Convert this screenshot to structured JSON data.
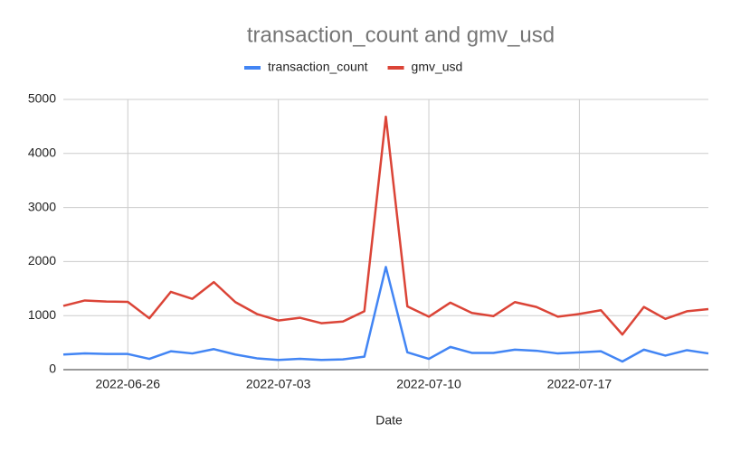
{
  "chart_data": {
    "type": "line",
    "title": "transaction_count and gmv_usd",
    "xlabel": "Date",
    "x": [
      "2022-06-23",
      "2022-06-24",
      "2022-06-25",
      "2022-06-26",
      "2022-06-27",
      "2022-06-28",
      "2022-06-29",
      "2022-06-30",
      "2022-07-01",
      "2022-07-02",
      "2022-07-03",
      "2022-07-04",
      "2022-07-05",
      "2022-07-06",
      "2022-07-07",
      "2022-07-08",
      "2022-07-09",
      "2022-07-10",
      "2022-07-11",
      "2022-07-12",
      "2022-07-13",
      "2022-07-14",
      "2022-07-15",
      "2022-07-16",
      "2022-07-17",
      "2022-07-18",
      "2022-07-19",
      "2022-07-20",
      "2022-07-21",
      "2022-07-22",
      "2022-07-23"
    ],
    "xticks": [
      "2022-06-26",
      "2022-07-03",
      "2022-07-10",
      "2022-07-17"
    ],
    "series": [
      {
        "name": "transaction_count",
        "color": "#4285f4",
        "values": [
          280,
          300,
          290,
          290,
          200,
          340,
          300,
          380,
          280,
          210,
          180,
          200,
          180,
          190,
          240,
          1900,
          320,
          200,
          420,
          310,
          310,
          370,
          350,
          300,
          320,
          340,
          150,
          370,
          260,
          360,
          300
        ]
      },
      {
        "name": "gmv_usd",
        "color": "#db4437",
        "values": [
          1180,
          1280,
          1260,
          1255,
          950,
          1440,
          1310,
          1620,
          1250,
          1030,
          910,
          960,
          860,
          890,
          1080,
          4680,
          1170,
          980,
          1240,
          1050,
          990,
          1250,
          1160,
          980,
          1030,
          1100,
          650,
          1160,
          940,
          1080,
          1120
        ]
      }
    ],
    "ylim": [
      0,
      5000
    ],
    "yticks": [
      0,
      1000,
      2000,
      3000,
      4000,
      5000
    ],
    "grid": true,
    "legend": "top"
  }
}
